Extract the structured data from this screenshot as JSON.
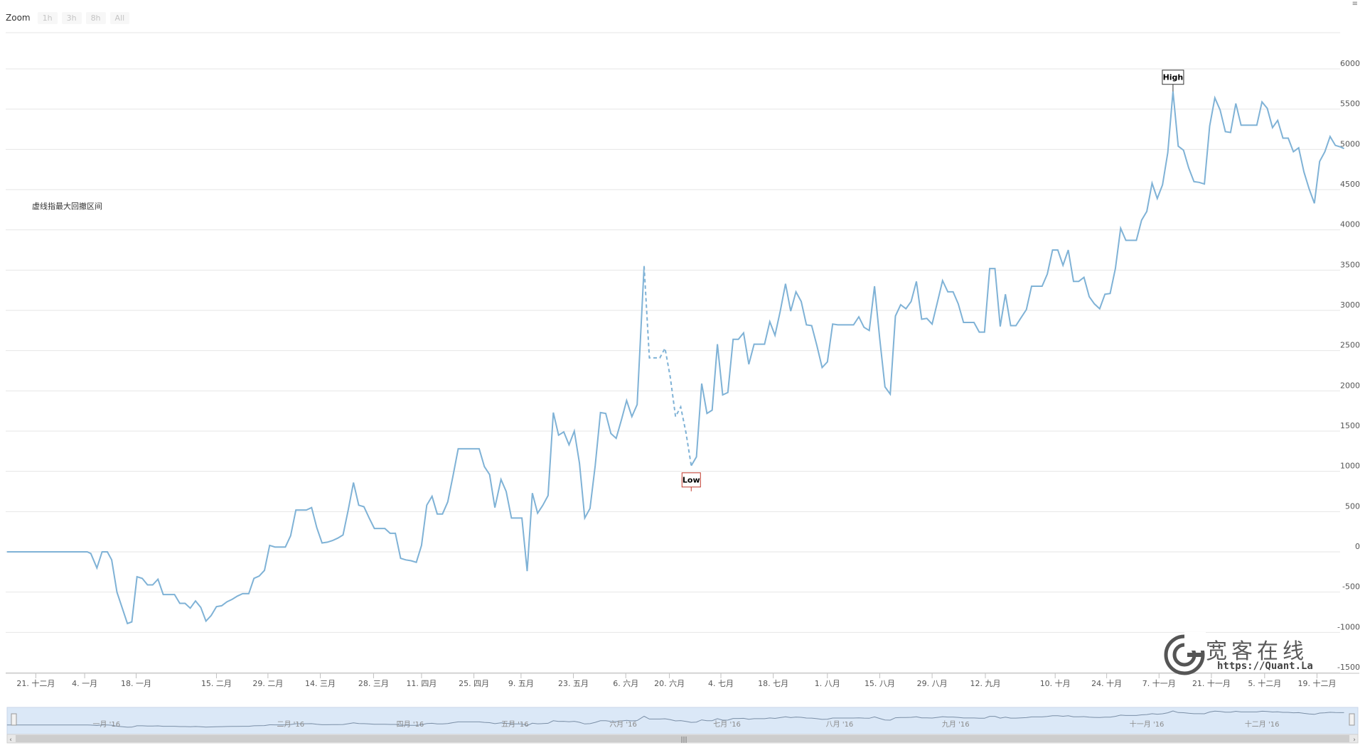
{
  "zoom": {
    "label": "Zoom",
    "buttons": [
      "1h",
      "3h",
      "8h",
      "All"
    ]
  },
  "annotation": "虚线指最大回撤区间",
  "watermark": {
    "title": "宽客在线",
    "url": "https://Quant.La"
  },
  "colors": {
    "line": "#7fb2d6",
    "grid": "#e6e6e6",
    "navigator_fill": "#dbe8f7",
    "low_flag": "#c0392b",
    "high_flag": "#333333"
  },
  "chart_data": {
    "type": "line",
    "title": "",
    "xlabel": "",
    "ylabel": "",
    "ylim": [
      -1500,
      6000
    ],
    "yticks": [
      -1500,
      -1000,
      -500,
      0,
      500,
      1000,
      1500,
      2000,
      2500,
      3000,
      3500,
      4000,
      4500,
      5000,
      5500,
      6000
    ],
    "xlim": [
      0,
      1554
    ],
    "xtick_labels": [
      {
        "x": 41,
        "label": "21. 十二月"
      },
      {
        "x": 97,
        "label": "4. 一月"
      },
      {
        "x": 156,
        "label": "18. 一月"
      },
      {
        "x": 248,
        "label": "15. 二月"
      },
      {
        "x": 307,
        "label": "29. 二月"
      },
      {
        "x": 367,
        "label": "14. 三月"
      },
      {
        "x": 428,
        "label": "28. 三月"
      },
      {
        "x": 483,
        "label": "11. 四月"
      },
      {
        "x": 543,
        "label": "25. 四月"
      },
      {
        "x": 597,
        "label": "9. 五月"
      },
      {
        "x": 657,
        "label": "23. 五月"
      },
      {
        "x": 717,
        "label": "6. 六月"
      },
      {
        "x": 767,
        "label": "20. 六月"
      },
      {
        "x": 826,
        "label": "4. 七月"
      },
      {
        "x": 886,
        "label": "18. 七月"
      },
      {
        "x": 948,
        "label": "1. 八月"
      },
      {
        "x": 1008,
        "label": "15. 八月"
      },
      {
        "x": 1068,
        "label": "29. 八月"
      },
      {
        "x": 1129,
        "label": "12. 九月"
      },
      {
        "x": 1209,
        "label": "10. 十月"
      },
      {
        "x": 1268,
        "label": "24. 十月"
      },
      {
        "x": 1328,
        "label": "7. 十一月"
      },
      {
        "x": 1388,
        "label": "21. 十一月"
      },
      {
        "x": 1449,
        "label": "5. 十二月"
      },
      {
        "x": 1509,
        "label": "19. 十二月"
      }
    ],
    "navigator_labels": [
      {
        "x": 122,
        "label": "一月 '16"
      },
      {
        "x": 333,
        "label": "二月 '16"
      },
      {
        "x": 470,
        "label": "四月 '16"
      },
      {
        "x": 590,
        "label": "五月 '16"
      },
      {
        "x": 714,
        "label": "六月 '16"
      },
      {
        "x": 833,
        "label": "七月 '16"
      },
      {
        "x": 962,
        "label": "八月 '16"
      },
      {
        "x": 1095,
        "label": "九月 '16"
      },
      {
        "x": 1314,
        "label": "十一月 '16"
      },
      {
        "x": 1446,
        "label": "十二月 '16"
      }
    ],
    "series": [
      {
        "values": [
          [
            8,
            0
          ],
          [
            100,
            0
          ],
          [
            104,
            -20
          ],
          [
            111,
            -200
          ],
          [
            117,
            0
          ],
          [
            123,
            0
          ],
          [
            128,
            -100
          ],
          [
            134,
            -500
          ],
          [
            146,
            -890
          ],
          [
            151,
            -870
          ],
          [
            157,
            -310
          ],
          [
            163,
            -330
          ],
          [
            169,
            -410
          ],
          [
            175,
            -410
          ],
          [
            181,
            -340
          ],
          [
            187,
            -530
          ],
          [
            200,
            -530
          ],
          [
            206,
            -640
          ],
          [
            212,
            -640
          ],
          [
            218,
            -700
          ],
          [
            224,
            -610
          ],
          [
            230,
            -690
          ],
          [
            236,
            -860
          ],
          [
            242,
            -790
          ],
          [
            248,
            -680
          ],
          [
            254,
            -670
          ],
          [
            260,
            -620
          ],
          [
            266,
            -590
          ],
          [
            272,
            -550
          ],
          [
            278,
            -520
          ],
          [
            285,
            -520
          ],
          [
            291,
            -330
          ],
          [
            297,
            -300
          ],
          [
            303,
            -230
          ],
          [
            309,
            80
          ],
          [
            315,
            60
          ],
          [
            321,
            60
          ],
          [
            327,
            60
          ],
          [
            333,
            200
          ],
          [
            339,
            520
          ],
          [
            345,
            520
          ],
          [
            351,
            520
          ],
          [
            357,
            550
          ],
          [
            363,
            300
          ],
          [
            369,
            110
          ],
          [
            375,
            120
          ],
          [
            381,
            140
          ],
          [
            387,
            170
          ],
          [
            393,
            210
          ],
          [
            399,
            520
          ],
          [
            405,
            860
          ],
          [
            411,
            580
          ],
          [
            417,
            560
          ],
          [
            423,
            420
          ],
          [
            429,
            290
          ],
          [
            441,
            290
          ],
          [
            447,
            230
          ],
          [
            453,
            230
          ],
          [
            459,
            -80
          ],
          [
            465,
            -100
          ],
          [
            471,
            -110
          ],
          [
            477,
            -130
          ],
          [
            483,
            80
          ],
          [
            489,
            580
          ],
          [
            495,
            690
          ],
          [
            501,
            470
          ],
          [
            507,
            470
          ],
          [
            513,
            620
          ],
          [
            519,
            940
          ],
          [
            525,
            1280
          ],
          [
            531,
            1280
          ],
          [
            549,
            1280
          ],
          [
            555,
            1060
          ],
          [
            561,
            960
          ],
          [
            567,
            550
          ],
          [
            574,
            900
          ],
          [
            580,
            750
          ],
          [
            586,
            420
          ],
          [
            598,
            420
          ],
          [
            604,
            -240
          ],
          [
            610,
            730
          ],
          [
            616,
            480
          ],
          [
            622,
            580
          ],
          [
            628,
            700
          ],
          [
            634,
            1730
          ],
          [
            640,
            1450
          ],
          [
            646,
            1490
          ],
          [
            652,
            1330
          ],
          [
            658,
            1500
          ],
          [
            664,
            1100
          ],
          [
            670,
            420
          ],
          [
            676,
            540
          ],
          [
            682,
            1070
          ],
          [
            688,
            1730
          ],
          [
            694,
            1720
          ],
          [
            700,
            1470
          ],
          [
            706,
            1410
          ],
          [
            712,
            1640
          ],
          [
            718,
            1880
          ],
          [
            724,
            1680
          ],
          [
            730,
            1830
          ],
          [
            738,
            3550
          ]
        ]
      },
      {
        "values": [
          [
            738,
            3550
          ],
          [
            744,
            2410
          ],
          [
            756,
            2410
          ],
          [
            762,
            2530
          ],
          [
            768,
            2170
          ],
          [
            774,
            1680
          ],
          [
            780,
            1800
          ],
          [
            786,
            1480
          ],
          [
            792,
            1070
          ]
        ]
      },
      {
        "values": [
          [
            792,
            1070
          ],
          [
            798,
            1180
          ],
          [
            804,
            2090
          ],
          [
            810,
            1720
          ],
          [
            816,
            1760
          ],
          [
            822,
            2580
          ],
          [
            828,
            1950
          ],
          [
            834,
            1980
          ],
          [
            840,
            2640
          ],
          [
            846,
            2640
          ],
          [
            852,
            2720
          ],
          [
            858,
            2330
          ],
          [
            864,
            2580
          ],
          [
            876,
            2580
          ],
          [
            882,
            2860
          ],
          [
            888,
            2690
          ],
          [
            894,
            2990
          ],
          [
            900,
            3330
          ],
          [
            906,
            2990
          ],
          [
            912,
            3230
          ],
          [
            918,
            3110
          ],
          [
            924,
            2820
          ],
          [
            930,
            2810
          ],
          [
            936,
            2560
          ],
          [
            942,
            2290
          ],
          [
            948,
            2360
          ],
          [
            954,
            2830
          ],
          [
            960,
            2820
          ],
          [
            978,
            2820
          ],
          [
            984,
            2920
          ],
          [
            990,
            2790
          ],
          [
            996,
            2750
          ],
          [
            1002,
            3300
          ],
          [
            1008,
            2650
          ],
          [
            1014,
            2050
          ],
          [
            1020,
            1960
          ],
          [
            1026,
            2930
          ],
          [
            1032,
            3070
          ],
          [
            1038,
            3020
          ],
          [
            1044,
            3110
          ],
          [
            1050,
            3360
          ],
          [
            1056,
            2890
          ],
          [
            1062,
            2900
          ],
          [
            1068,
            2830
          ],
          [
            1074,
            3100
          ],
          [
            1080,
            3370
          ],
          [
            1086,
            3230
          ],
          [
            1092,
            3230
          ],
          [
            1098,
            3080
          ],
          [
            1104,
            2850
          ],
          [
            1116,
            2850
          ],
          [
            1122,
            2730
          ],
          [
            1128,
            2730
          ],
          [
            1134,
            3520
          ],
          [
            1140,
            3520
          ],
          [
            1146,
            2800
          ],
          [
            1152,
            3200
          ],
          [
            1158,
            2810
          ],
          [
            1164,
            2810
          ],
          [
            1170,
            2910
          ],
          [
            1176,
            3010
          ],
          [
            1182,
            3300
          ],
          [
            1194,
            3300
          ],
          [
            1200,
            3450
          ],
          [
            1206,
            3750
          ],
          [
            1212,
            3750
          ],
          [
            1218,
            3560
          ],
          [
            1224,
            3750
          ],
          [
            1230,
            3360
          ],
          [
            1236,
            3360
          ],
          [
            1242,
            3410
          ],
          [
            1248,
            3170
          ],
          [
            1254,
            3080
          ],
          [
            1260,
            3020
          ],
          [
            1266,
            3200
          ],
          [
            1272,
            3210
          ],
          [
            1278,
            3520
          ],
          [
            1284,
            4020
          ],
          [
            1290,
            3870
          ],
          [
            1296,
            3870
          ],
          [
            1302,
            3870
          ],
          [
            1308,
            4120
          ],
          [
            1314,
            4230
          ],
          [
            1320,
            4580
          ],
          [
            1326,
            4390
          ],
          [
            1332,
            4560
          ],
          [
            1338,
            4960
          ],
          [
            1344,
            5720
          ],
          [
            1350,
            5040
          ],
          [
            1356,
            4990
          ],
          [
            1362,
            4770
          ],
          [
            1368,
            4600
          ],
          [
            1374,
            4590
          ],
          [
            1380,
            4570
          ],
          [
            1386,
            5290
          ],
          [
            1392,
            5640
          ],
          [
            1398,
            5490
          ],
          [
            1404,
            5220
          ],
          [
            1410,
            5210
          ],
          [
            1416,
            5570
          ],
          [
            1422,
            5300
          ],
          [
            1440,
            5300
          ],
          [
            1446,
            5590
          ],
          [
            1452,
            5510
          ],
          [
            1458,
            5270
          ],
          [
            1464,
            5360
          ],
          [
            1470,
            5140
          ],
          [
            1476,
            5140
          ],
          [
            1482,
            4970
          ],
          [
            1488,
            5020
          ],
          [
            1494,
            4720
          ],
          [
            1500,
            4510
          ],
          [
            1506,
            4330
          ],
          [
            1512,
            4850
          ],
          [
            1518,
            4970
          ],
          [
            1524,
            5160
          ],
          [
            1530,
            5050
          ],
          [
            1536,
            5030
          ],
          [
            1540,
            5010
          ]
        ]
      }
    ],
    "flags": [
      {
        "text": "High",
        "x": 1344,
        "y": 5720
      },
      {
        "text": "Low",
        "x": 792,
        "y": 1070
      }
    ],
    "legend": "none",
    "grid": true
  }
}
